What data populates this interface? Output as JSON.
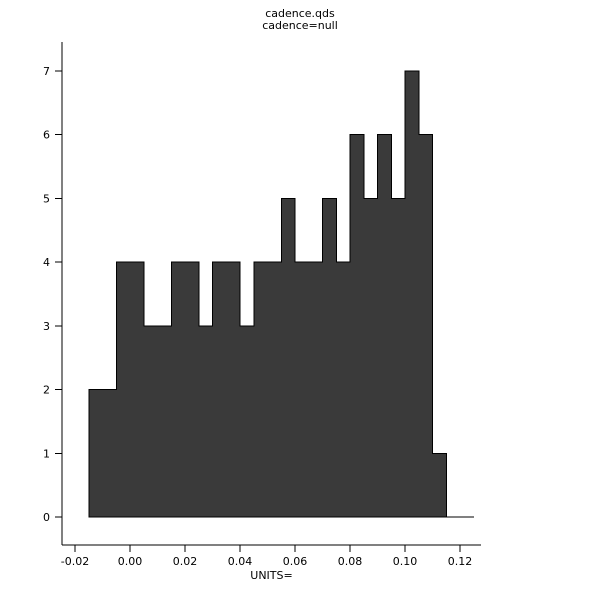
{
  "window": {
    "background": "#ffffff"
  },
  "chart_data": {
    "type": "bar",
    "subtype": "histogram",
    "title": "cadence.qds",
    "subtitle": "cadence=null",
    "xlabel": "UNITS=",
    "ylabel": "",
    "bin_start": -0.015,
    "bin_width": 0.005,
    "counts": [
      2,
      2,
      4,
      4,
      3,
      3,
      4,
      4,
      3,
      4,
      4,
      3,
      4,
      4,
      5,
      4,
      4,
      5,
      4,
      6,
      5,
      6,
      5,
      7,
      6,
      1,
      0,
      0
    ],
    "x_ticks": [
      -0.02,
      0.0,
      0.02,
      0.04,
      0.06,
      0.08,
      0.1,
      0.12
    ],
    "x_tick_labels": [
      "-0.02",
      "0.00",
      "0.02",
      "0.04",
      "0.06",
      "0.08",
      "0.10",
      "0.12"
    ],
    "y_ticks": [
      0,
      1,
      2,
      3,
      4,
      5,
      6,
      7
    ],
    "y_tick_labels": [
      "0",
      "1",
      "2",
      "3",
      "4",
      "5",
      "6",
      "7"
    ],
    "xlim": [
      -0.0247,
      0.1277
    ],
    "ylim": [
      0,
      7.46
    ],
    "grid": false,
    "legend": false,
    "bar_color": "#3a3a3a",
    "axis_color": "#000000",
    "text_color": "#000000"
  }
}
